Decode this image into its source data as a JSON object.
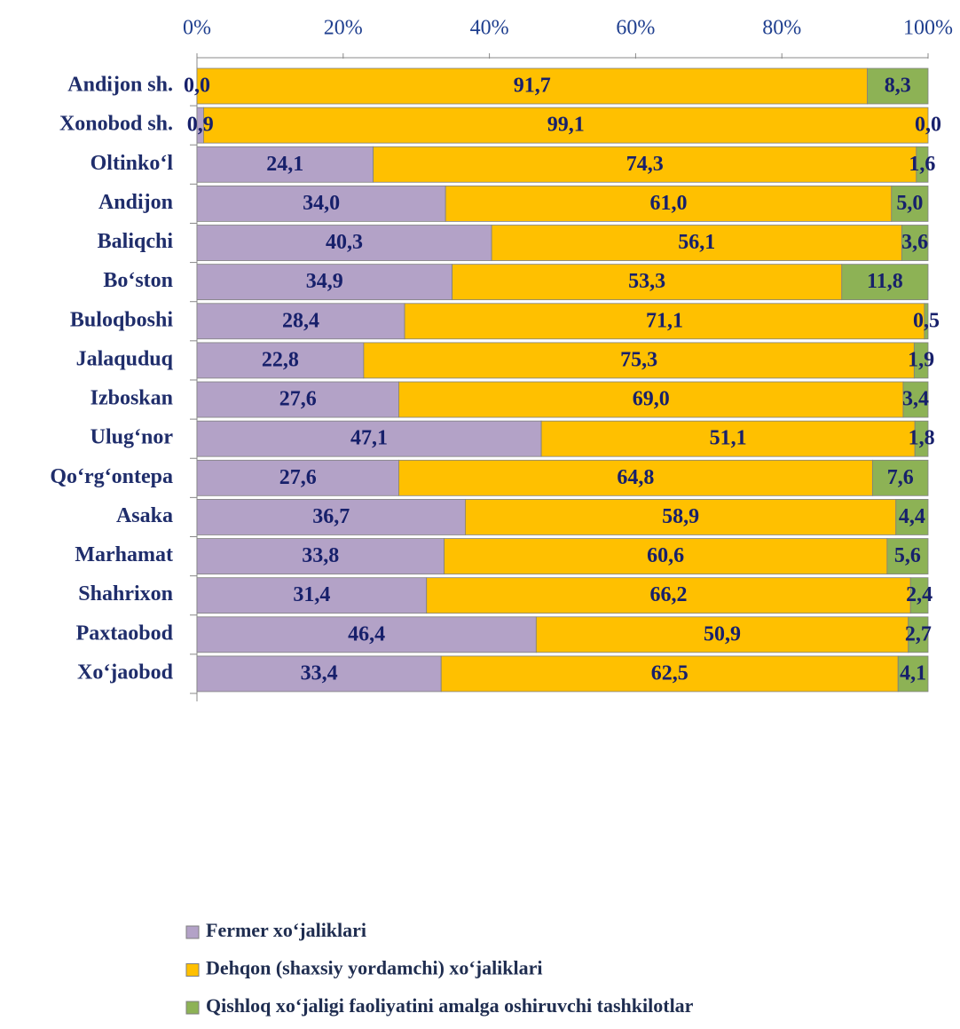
{
  "chart_data": {
    "type": "stacked_bar_horizontal",
    "categories": [
      "Andijon sh.",
      "Xonobod sh.",
      "Oltinko‘l",
      "Andijon",
      "Baliqchi",
      "Bo‘ston",
      "Buloqboshi",
      "Jalaquduq",
      "Izboskan",
      "Ulug‘nor",
      "Qo‘rg‘ontepa",
      "Asaka",
      "Marhamat",
      "Shahrixon",
      "Paxtaobod",
      "Xo‘jaobod"
    ],
    "series": [
      {
        "name": "Fermer xo‘jaliklari",
        "color": "#b3a2c7",
        "values": [
          0.0,
          0.9,
          24.1,
          34.0,
          40.3,
          34.9,
          28.4,
          22.8,
          27.6,
          47.1,
          27.6,
          36.7,
          33.8,
          31.4,
          46.4,
          33.4
        ],
        "value_labels": [
          "0,0",
          "0,9",
          "24,1",
          "34,0",
          "40,3",
          "34,9",
          "28,4",
          "22,8",
          "27,6",
          "47,1",
          "27,6",
          "36,7",
          "33,8",
          "31,4",
          "46,4",
          "33,4"
        ]
      },
      {
        "name": "Dehqon (shaxsiy yordamchi) xo‘jaliklari",
        "color": "#ffc000",
        "values": [
          91.7,
          99.1,
          74.3,
          61.0,
          56.1,
          53.3,
          71.1,
          75.3,
          69.0,
          51.1,
          64.8,
          58.9,
          60.6,
          66.2,
          50.9,
          62.5
        ],
        "value_labels": [
          "91,7",
          "99,1",
          "74,3",
          "61,0",
          "56,1",
          "53,3",
          "71,1",
          "75,3",
          "69,0",
          "51,1",
          "64,8",
          "58,9",
          "60,6",
          "66,2",
          "50,9",
          "62,5"
        ]
      },
      {
        "name": "Qishloq xo‘jaligi faoliyatini amalga oshiruvchi tashkilotlar",
        "color": "#8db255",
        "values": [
          8.3,
          0.0,
          1.6,
          5.0,
          3.6,
          11.8,
          0.5,
          1.9,
          3.4,
          1.8,
          7.6,
          4.4,
          5.6,
          2.4,
          2.7,
          4.1
        ],
        "value_labels": [
          "8,3",
          "0,0",
          "1,6",
          "5,0",
          "3,6",
          "11,8",
          "0,5",
          "1,9",
          "3,4",
          "1,8",
          "7,6",
          "4,4",
          "5,6",
          "2,4",
          "2,7",
          "4,1"
        ]
      }
    ],
    "xlim": [
      0,
      100
    ],
    "xticks": [
      {
        "value": 0,
        "label": "0%"
      },
      {
        "value": 20,
        "label": "20%"
      },
      {
        "value": 40,
        "label": "40%"
      },
      {
        "value": 60,
        "label": "60%"
      },
      {
        "value": 80,
        "label": "80%"
      },
      {
        "value": 100,
        "label": "100%"
      }
    ]
  }
}
